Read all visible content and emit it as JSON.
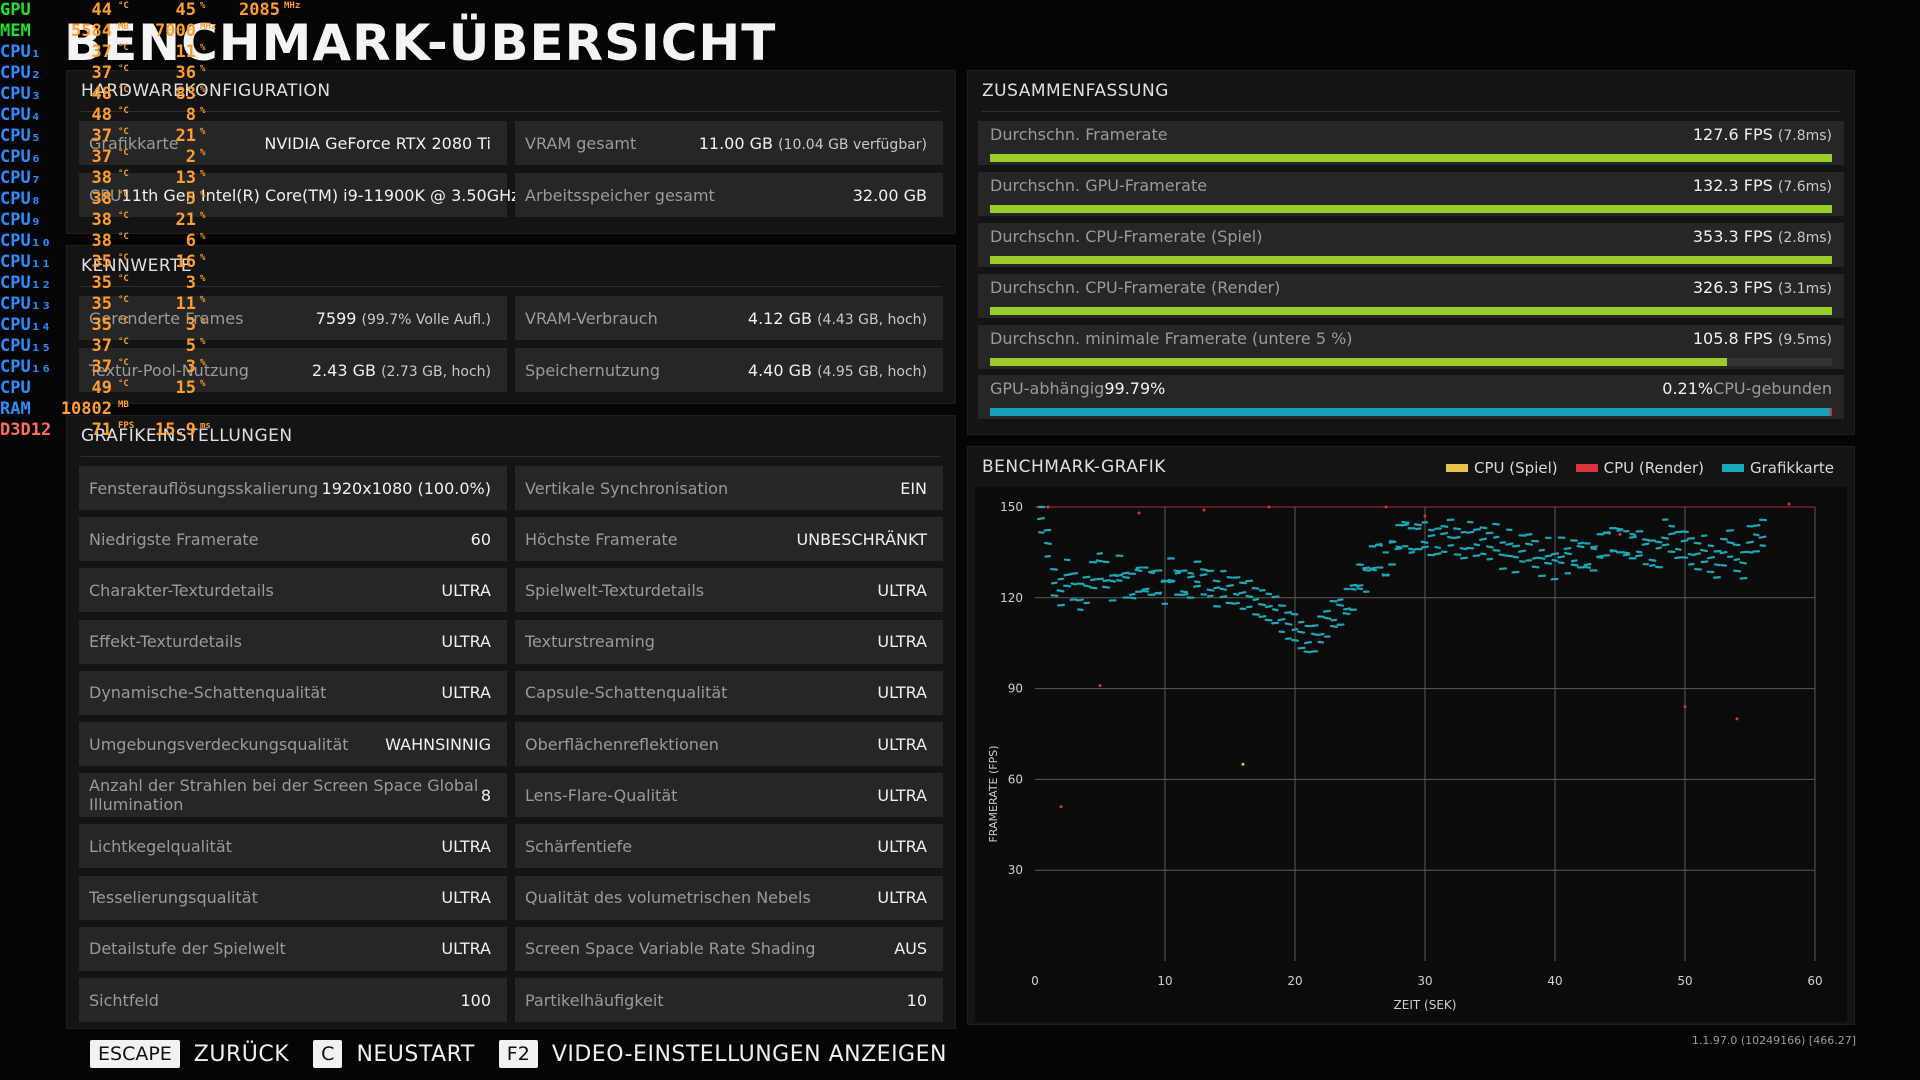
{
  "title": "BENCHMARK-ÜBERSICHT",
  "hardware": {
    "heading": "HARDWAREKONFIGURATION",
    "cells": [
      {
        "label": "Grafikkarte",
        "value": "NVIDIA GeForce RTX 2080 Ti",
        "sub": ""
      },
      {
        "label": "VRAM gesamt",
        "value": "11.00 GB",
        "sub": "(10.04 GB verfügbar)"
      },
      {
        "label": "CPU",
        "value": "11th Gen Intel(R) Core(TM) i9-11900K @ 3.50GHz",
        "sub": ""
      },
      {
        "label": "Arbeitsspeicher gesamt",
        "value": "32.00 GB",
        "sub": ""
      }
    ]
  },
  "metrics": {
    "heading": "KENNWERTE",
    "cells": [
      {
        "label": "Gerenderte Frames",
        "value": "7599",
        "sub": "(99.7% Volle Aufl.)"
      },
      {
        "label": "VRAM-Verbrauch",
        "value": "4.12 GB",
        "sub": "(4.43 GB, hoch)"
      },
      {
        "label": "Textur-Pool-Nutzung",
        "value": "2.43 GB",
        "sub": "(2.73 GB, hoch)"
      },
      {
        "label": "Speichernutzung",
        "value": "4.40 GB",
        "sub": "(4.95 GB, hoch)"
      }
    ]
  },
  "settings": {
    "heading": "GRAFIKEINSTELLUNGEN",
    "cells": [
      {
        "label": "Fensterauflösungsskalierung",
        "value": "1920x1080 (100.0%)"
      },
      {
        "label": "Vertikale Synchronisation",
        "value": "EIN"
      },
      {
        "label": "Niedrigste Framerate",
        "value": "60"
      },
      {
        "label": "Höchste Framerate",
        "value": "UNBESCHRÄNKT"
      },
      {
        "label": "Charakter-Texturdetails",
        "value": "ULTRA"
      },
      {
        "label": "Spielwelt-Texturdetails",
        "value": "ULTRA"
      },
      {
        "label": "Effekt-Texturdetails",
        "value": "ULTRA"
      },
      {
        "label": "Texturstreaming",
        "value": "ULTRA"
      },
      {
        "label": "Dynamische-Schattenqualität",
        "value": "ULTRA"
      },
      {
        "label": "Capsule-Schattenqualität",
        "value": "ULTRA"
      },
      {
        "label": "Umgebungsverdeckungsqualität",
        "value": "WAHNSINNIG"
      },
      {
        "label": "Oberflächenreflektionen",
        "value": "ULTRA"
      },
      {
        "label": "Anzahl der Strahlen bei der Screen Space Global Illumination",
        "value": "8"
      },
      {
        "label": "Lens-Flare-Qualität",
        "value": "ULTRA"
      },
      {
        "label": "Lichtkegelqualität",
        "value": "ULTRA"
      },
      {
        "label": "Schärfentiefe",
        "value": "ULTRA"
      },
      {
        "label": "Tesselierungsqualität",
        "value": "ULTRA"
      },
      {
        "label": "Qualität des volumetrischen Nebels",
        "value": "ULTRA"
      },
      {
        "label": "Detailstufe der Spielwelt",
        "value": "ULTRA"
      },
      {
        "label": "Screen Space Variable Rate Shading",
        "value": "AUS"
      },
      {
        "label": "Sichtfeld",
        "value": "100"
      },
      {
        "label": "Partikelhäufigkeit",
        "value": "10"
      }
    ]
  },
  "summary": {
    "heading": "ZUSAMMENFASSUNG",
    "rows": [
      {
        "label": "Durchschn. Framerate",
        "value": "127.6 FPS",
        "sub": "(7.8ms)",
        "fill": 1.0
      },
      {
        "label": "Durchschn. GPU-Framerate",
        "value": "132.3 FPS",
        "sub": "(7.6ms)",
        "fill": 1.0
      },
      {
        "label": "Durchschn. CPU-Framerate (Spiel)",
        "value": "353.3 FPS",
        "sub": "(2.8ms)",
        "fill": 1.0
      },
      {
        "label": "Durchschn. CPU-Framerate (Render)",
        "value": "326.3 FPS",
        "sub": "(3.1ms)",
        "fill": 1.0
      },
      {
        "label": "Durchschn. minimale Framerate (untere 5 %)",
        "value": "105.8 FPS",
        "sub": "(9.5ms)",
        "fill": 0.875
      }
    ],
    "bound": {
      "gpu_label": "GPU-abhängig",
      "gpu_value": "99.79%",
      "cpu_value": "0.21%",
      "cpu_label": "CPU-gebunden",
      "gpu_fill": 0.9979,
      "gpu_color": "#1aa0b4",
      "cpu_color": "#c8323c"
    }
  },
  "chart_data": {
    "type": "scatter",
    "title": "BENCHMARK-GRAFIK",
    "xlabel": "ZEIT (SEK)",
    "ylabel": "FRAMERATE (FPS)",
    "xlim": [
      0,
      60
    ],
    "ylim": [
      0,
      150
    ],
    "x_ticks": [
      "0",
      "10",
      "20",
      "30",
      "40",
      "50",
      "60"
    ],
    "y_ticks": [
      "30",
      "60",
      "90",
      "120",
      "150"
    ],
    "grid": true,
    "legend_position": "top-right",
    "legend": [
      {
        "name": "CPU (Spiel)",
        "color": "#e8c24a"
      },
      {
        "name": "CPU (Render)",
        "color": "#d9353f"
      },
      {
        "name": "Grafikkarte",
        "color": "#1aa8b8"
      }
    ],
    "series": [
      {
        "name": "Grafikkarte",
        "color": "#1aa8b8",
        "x": [
          0.5,
          1,
          1.5,
          2,
          2.5,
          3,
          3.5,
          4,
          4.5,
          5,
          5.5,
          6,
          6.5,
          7,
          7.5,
          8,
          8.5,
          9,
          9.5,
          10,
          10.5,
          11,
          11.5,
          12,
          12.5,
          13,
          13.5,
          14,
          14.5,
          15,
          15.5,
          16,
          16.5,
          17,
          17.5,
          18,
          18.5,
          19,
          19.5,
          20,
          20.5,
          21,
          21.5,
          22,
          22.5,
          23,
          23.5,
          24,
          24.5,
          25,
          25.5,
          26,
          26.5,
          27,
          27.5,
          28,
          28.5,
          29,
          29.5,
          30,
          30.5,
          31,
          31.5,
          32,
          32.5,
          33,
          33.5,
          34,
          34.5,
          35,
          35.5,
          36,
          36.5,
          37,
          37.5,
          38,
          38.5,
          39,
          39.5,
          40,
          40.5,
          41,
          41.5,
          42,
          42.5,
          43,
          43.5,
          44,
          44.5,
          45,
          45.5,
          46,
          46.5,
          47,
          47.5,
          48,
          48.5,
          49,
          49.5,
          50,
          50.5,
          51,
          51.5,
          52,
          52.5,
          53,
          53.5,
          54,
          54.5,
          55,
          55.5,
          56
        ],
        "y": [
          146,
          138,
          125,
          122,
          128,
          124,
          120,
          123,
          127,
          131,
          127,
          124,
          129,
          125,
          123,
          127,
          125,
          126,
          124,
          123,
          128,
          126,
          124,
          125,
          127,
          126,
          124,
          122,
          124,
          123,
          122,
          121,
          121,
          119,
          118,
          117,
          116,
          113,
          111,
          110,
          108,
          106,
          107,
          109,
          112,
          114,
          116,
          118,
          121,
          126,
          127,
          132,
          135,
          130,
          136,
          139,
          142,
          138,
          141,
          140,
          139,
          138,
          140,
          141,
          139,
          137,
          141,
          138,
          139,
          137,
          140,
          134,
          138,
          133,
          136,
          137,
          134,
          132,
          135,
          131,
          135,
          133,
          134,
          135,
          133,
          134,
          136,
          139,
          138,
          140,
          137,
          138,
          137,
          136,
          134,
          135,
          141,
          140,
          137,
          138,
          135,
          134,
          136,
          133,
          131,
          135,
          138,
          133,
          131,
          139,
          140,
          141
        ]
      },
      {
        "name": "CPU (Render)",
        "color": "#d9353f",
        "x": [
          2,
          5,
          18,
          30,
          45,
          54,
          58,
          1,
          8,
          27,
          50,
          13
        ],
        "y": [
          51,
          91,
          150,
          147,
          141,
          80,
          151,
          150,
          148,
          150,
          84,
          149
        ]
      },
      {
        "name": "CPU (Spiel)",
        "color": "#e8c24a",
        "x": [
          16
        ],
        "y": [
          65
        ]
      }
    ]
  },
  "footer": {
    "keys": [
      {
        "key": "ESCAPE",
        "label": "ZURÜCK"
      },
      {
        "key": "C",
        "label": "NEUSTART"
      },
      {
        "key": "F2",
        "label": "VIDEO-EINSTELLUNGEN ANZEIGEN"
      }
    ],
    "version": "1.1.97.0 (10249166) [466.27]"
  },
  "osd": {
    "colors": {
      "gpu": "#20e030",
      "mem": "#20e030",
      "cpu": "#2e8cff",
      "ram": "#2e8cff",
      "d3d": "#ff6e5c",
      "value": "#ff9d2e"
    },
    "rows": [
      {
        "name": "GPU",
        "v1": "44",
        "u1": "°C",
        "v2": "45",
        "u2": "%",
        "v3": "2085",
        "u3": "MHz",
        "c": "gpu"
      },
      {
        "name": "MEM",
        "v1": "5584",
        "u1": "MB",
        "v2": "7000",
        "u2": "MHz",
        "v3": "",
        "u3": "",
        "c": "mem"
      },
      {
        "name": "CPU₁",
        "v1": "37",
        "u1": "°C",
        "v2": "11",
        "u2": "%",
        "v3": "",
        "u3": "",
        "c": "cpu"
      },
      {
        "name": "CPU₂",
        "v1": "37",
        "u1": "°C",
        "v2": "36",
        "u2": "%",
        "v3": "",
        "u3": "",
        "c": "cpu"
      },
      {
        "name": "CPU₃",
        "v1": "48",
        "u1": "°C",
        "v2": "83",
        "u2": "%",
        "v3": "",
        "u3": "",
        "c": "cpu"
      },
      {
        "name": "CPU₄",
        "v1": "48",
        "u1": "°C",
        "v2": "8",
        "u2": "%",
        "v3": "",
        "u3": "",
        "c": "cpu"
      },
      {
        "name": "CPU₅",
        "v1": "37",
        "u1": "°C",
        "v2": "21",
        "u2": "%",
        "v3": "",
        "u3": "",
        "c": "cpu"
      },
      {
        "name": "CPU₆",
        "v1": "37",
        "u1": "°C",
        "v2": "2",
        "u2": "%",
        "v3": "",
        "u3": "",
        "c": "cpu"
      },
      {
        "name": "CPU₇",
        "v1": "38",
        "u1": "°C",
        "v2": "13",
        "u2": "%",
        "v3": "",
        "u3": "",
        "c": "cpu"
      },
      {
        "name": "CPU₈",
        "v1": "38",
        "u1": "°C",
        "v2": "5",
        "u2": "%",
        "v3": "",
        "u3": "",
        "c": "cpu"
      },
      {
        "name": "CPU₉",
        "v1": "38",
        "u1": "°C",
        "v2": "21",
        "u2": "%",
        "v3": "",
        "u3": "",
        "c": "cpu"
      },
      {
        "name": "CPU₁₀",
        "v1": "38",
        "u1": "°C",
        "v2": "6",
        "u2": "%",
        "v3": "",
        "u3": "",
        "c": "cpu"
      },
      {
        "name": "CPU₁₁",
        "v1": "35",
        "u1": "°C",
        "v2": "16",
        "u2": "%",
        "v3": "",
        "u3": "",
        "c": "cpu"
      },
      {
        "name": "CPU₁₂",
        "v1": "35",
        "u1": "°C",
        "v2": "3",
        "u2": "%",
        "v3": "",
        "u3": "",
        "c": "cpu"
      },
      {
        "name": "CPU₁₃",
        "v1": "35",
        "u1": "°C",
        "v2": "11",
        "u2": "%",
        "v3": "",
        "u3": "",
        "c": "cpu"
      },
      {
        "name": "CPU₁₄",
        "v1": "35",
        "u1": "°C",
        "v2": "3",
        "u2": "%",
        "v3": "",
        "u3": "",
        "c": "cpu"
      },
      {
        "name": "CPU₁₅",
        "v1": "37",
        "u1": "°C",
        "v2": "5",
        "u2": "%",
        "v3": "",
        "u3": "",
        "c": "cpu"
      },
      {
        "name": "CPU₁₆",
        "v1": "37",
        "u1": "°C",
        "v2": "3",
        "u2": "%",
        "v3": "",
        "u3": "",
        "c": "cpu"
      },
      {
        "name": "CPU",
        "v1": "49",
        "u1": "°C",
        "v2": "15",
        "u2": "%",
        "v3": "",
        "u3": "",
        "c": "cpu"
      },
      {
        "name": "RAM",
        "v1": "10802",
        "u1": "MB",
        "v2": "",
        "u2": "",
        "v3": "",
        "u3": "",
        "c": "ram"
      },
      {
        "name": "D3D12",
        "v1": "71",
        "u1": "FPS",
        "v2": "15.9",
        "u2": "ms",
        "v3": "",
        "u3": "",
        "c": "d3d"
      }
    ]
  }
}
